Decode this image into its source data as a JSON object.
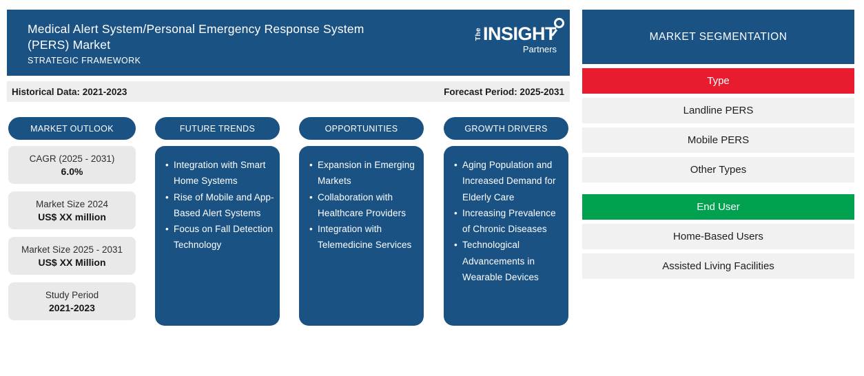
{
  "header": {
    "title_line1": "Medical Alert System/Personal Emergency Response System",
    "title_line2": "(PERS) Market",
    "subtitle": "STRATEGIC FRAMEWORK",
    "logo": {
      "the": "The",
      "insight": "INSIGHT",
      "partners": "Partners",
      "icon": "magnifier-icon"
    }
  },
  "period_bar": {
    "historical": "Historical Data: 2021-2023",
    "forecast": "Forecast Period: 2025-2031"
  },
  "columns": [
    {
      "title": "MARKET OUTLOOK",
      "cards": [
        {
          "label": "CAGR (2025 - 2031)",
          "value": "6.0%"
        },
        {
          "label": "Market Size 2024",
          "value": "US$ XX million"
        },
        {
          "label": "Market Size 2025 - 2031",
          "value": "US$ XX Million"
        },
        {
          "label": "Study Period",
          "value": "2021-2023"
        }
      ]
    },
    {
      "title": "FUTURE TRENDS",
      "bullets": [
        "Integration with Smart Home Systems",
        "Rise of Mobile and App-Based Alert Systems",
        "Focus on Fall Detection Technology"
      ]
    },
    {
      "title": "OPPORTUNITIES",
      "bullets": [
        "Expansion in Emerging Markets",
        "Collaboration with Healthcare Providers",
        "Integration with Telemedicine Services"
      ]
    },
    {
      "title": "GROWTH DRIVERS",
      "bullets": [
        "Aging Population and Increased Demand for Elderly Care",
        "Increasing Prevalence of Chronic Diseases",
        "Technological Advancements in Wearable Devices"
      ]
    }
  ],
  "segmentation": {
    "title": "MARKET SEGMENTATION",
    "groups": [
      {
        "header": "Type",
        "color": "#e81c2e",
        "items": [
          "Landline PERS",
          "Mobile PERS",
          "Other Types"
        ]
      },
      {
        "header": "End User",
        "color": "#00a24f",
        "items": [
          "Home-Based Users",
          "Assisted Living Facilities"
        ]
      }
    ]
  },
  "colors": {
    "brand_blue": "#1a5284",
    "accent_red": "#e81c2e",
    "accent_green": "#00a24f",
    "card_gray": "#e9e9e9",
    "row_gray": "#f1f1f1",
    "strip_gray": "#eeeeee"
  }
}
